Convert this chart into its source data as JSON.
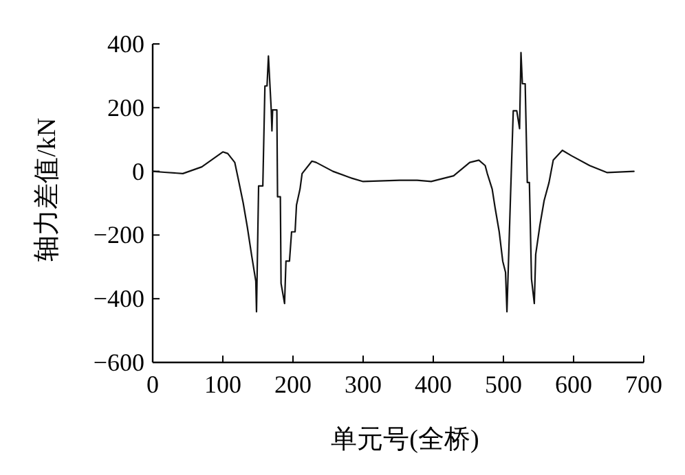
{
  "chart_data": {
    "type": "line",
    "xlabel": "单元号(全桥)",
    "ylabel": "轴力差值/kN",
    "xlim": [
      0,
      700
    ],
    "ylim": [
      -600,
      400
    ],
    "xticks": [
      0,
      100,
      200,
      300,
      400,
      500,
      600,
      700
    ],
    "yticks": [
      {
        "value": -600,
        "label": "−600"
      },
      {
        "value": -400,
        "label": "−400"
      },
      {
        "value": -200,
        "label": "−200"
      },
      0,
      200,
      400
    ],
    "marker": "none",
    "line_style": "solid",
    "series": [
      {
        "color": "#111111",
        "x": [
          0,
          17,
          43,
          70,
          100,
          107,
          117,
          122,
          129,
          135,
          141,
          147,
          148,
          151,
          157,
          160,
          163,
          165,
          169,
          170,
          171,
          177,
          178,
          182,
          183,
          188,
          190,
          195,
          198,
          203,
          205,
          210,
          213,
          227,
          233,
          257,
          283,
          300,
          352,
          377,
          397,
          429,
          452,
          465,
          474,
          477,
          484,
          488,
          494,
          499,
          503,
          505,
          510,
          514,
          519,
          523,
          525,
          527,
          531,
          534,
          537,
          540,
          544,
          546,
          552,
          558,
          565,
          571,
          584,
          597,
          623,
          648,
          686
        ],
        "values": [
          0,
          -3,
          -7,
          14,
          61,
          56,
          28,
          -24,
          -99,
          -176,
          -263,
          -345,
          -441,
          -46,
          -46,
          268,
          268,
          362,
          193,
          127,
          193,
          193,
          -80,
          -80,
          -352,
          -415,
          -282,
          -282,
          -190,
          -190,
          -106,
          -56,
          -7,
          32,
          28,
          0,
          -21,
          -32,
          -28,
          -28,
          -32,
          -14,
          28,
          35,
          18,
          -7,
          -56,
          -113,
          -190,
          -282,
          -317,
          -441,
          -85,
          190,
          190,
          134,
          373,
          275,
          275,
          -35,
          -35,
          -338,
          -415,
          -261,
          -169,
          -92,
          -35,
          35,
          66,
          49,
          18,
          -4,
          0
        ]
      }
    ]
  }
}
